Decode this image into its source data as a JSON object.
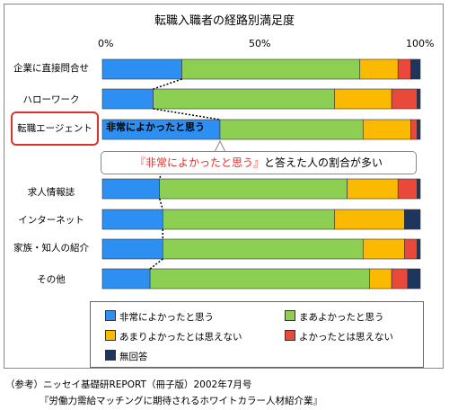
{
  "chart_data": {
    "type": "bar",
    "orientation": "horizontal",
    "stacked": true,
    "title": "転職入職者の経路別満足度",
    "categories": [
      "企業に直接問合せ",
      "ハローワーク",
      "転職エージェント",
      "求人情報誌",
      "インターネット",
      "家族・知人の紹介",
      "その他"
    ],
    "highlight_category": "転職エージェント",
    "x_ticks": [
      "0%",
      "50%",
      "100%"
    ],
    "xlim": [
      0,
      100
    ],
    "series": [
      {
        "name": "非常によかったと思う",
        "color": "#2e8ff2",
        "values": [
          25,
          16,
          37,
          18,
          19,
          19,
          15
        ]
      },
      {
        "name": "まあよかったと思う",
        "color": "#8ccf53",
        "values": [
          56,
          57,
          45,
          59,
          54,
          63,
          69
        ]
      },
      {
        "name": "あまりよかったとは思えない",
        "color": "#fbb900",
        "values": [
          12,
          18,
          15,
          16,
          22,
          13,
          7
        ]
      },
      {
        "name": "よかったとは思えない",
        "color": "#e8493a",
        "values": [
          4,
          8,
          2,
          6,
          0,
          4,
          5
        ]
      },
      {
        "name": "無回答",
        "color": "#1e355e",
        "values": [
          3,
          1,
          1,
          1,
          5,
          1,
          4
        ]
      }
    ],
    "bar_label": "非常によかったと思う",
    "callout": {
      "quote": "『非常によかったと思う』",
      "rest": "と答えた人の割合が多い"
    },
    "legend_position": "bottom"
  },
  "footer": {
    "line1": "（参考）ニッセイ基礎研REPORT（冊子版）2002年7月号",
    "line2": "『労働力需給マッチングに期待されるホワイトカラー人材紹介業』"
  }
}
